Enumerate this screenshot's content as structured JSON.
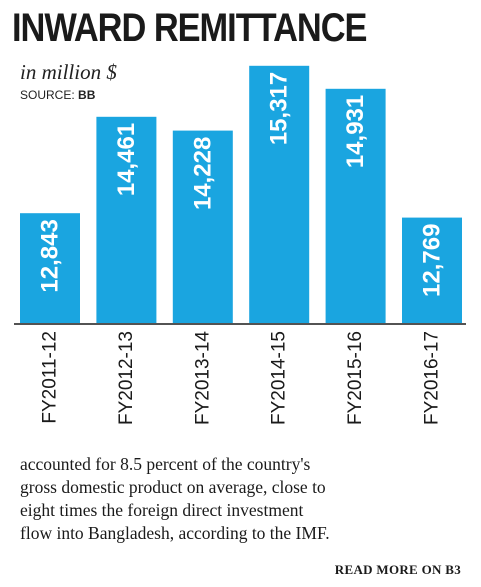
{
  "header": {
    "title": "INWARD REMITTANCE",
    "subtitle": "in million $",
    "source_label": "SOURCE:",
    "source_value": "BB"
  },
  "chart_data": {
    "type": "bar",
    "categories": [
      "FY2011-12",
      "FY2012-13",
      "FY2013-14",
      "FY2014-15",
      "FY2015-16",
      "FY2016-17"
    ],
    "values": [
      12843,
      14461,
      14228,
      15317,
      14931,
      12769
    ],
    "value_labels": [
      "12,843",
      "14,461",
      "14,228",
      "15,317",
      "14,931",
      "12,769"
    ],
    "title": "INWARD REMITTANCE",
    "subtitle": "in million $",
    "ylabel": "",
    "xlabel": "",
    "ylim": [
      11000,
      15380
    ],
    "bar_color": "#1aa5e0",
    "grid": false,
    "legend": "none"
  },
  "article": {
    "lines": [
      "accounted for 8.5 percent of the country's",
      "gross domestic product on average, close to",
      "eight times the foreign direct investment",
      "flow into Bangladesh, according to the IMF."
    ],
    "read_more": "READ MORE ON B3"
  }
}
